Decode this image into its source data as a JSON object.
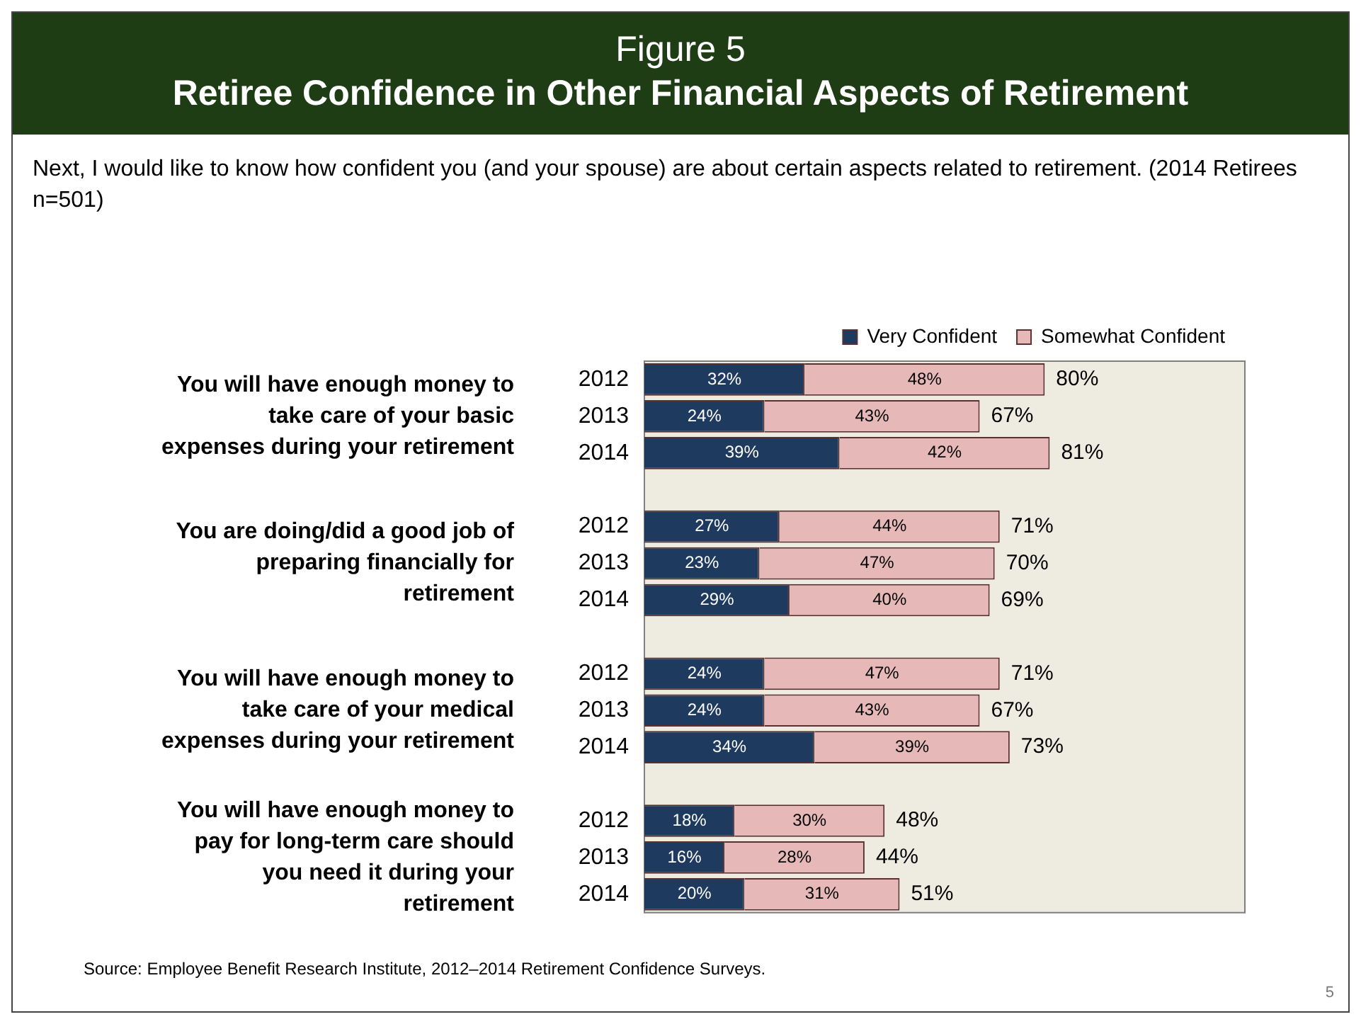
{
  "chart_data": {
    "type": "bar",
    "orientation": "horizontal",
    "stacked": true,
    "title": "Figure 5",
    "subtitle": "Retiree Confidence in Other Financial Aspects of Retirement",
    "categories": [
      "2012",
      "2013",
      "2014",
      null,
      "2012",
      "2013",
      "2014",
      null,
      "2012",
      "2013",
      "2014",
      null,
      "2012",
      "2013",
      "2014"
    ],
    "series": [
      {
        "name": "Very Confident",
        "color": "#1f3a5f",
        "values": [
          32,
          24,
          39,
          null,
          27,
          23,
          29,
          null,
          24,
          24,
          34,
          null,
          18,
          16,
          20
        ],
        "value_labels": [
          "32%",
          "24%",
          "39%",
          null,
          "27%",
          "23%",
          "29%",
          null,
          "24%",
          "24%",
          "34%",
          null,
          "18%",
          "16%",
          "20%"
        ]
      },
      {
        "name": "Somewhat Confident",
        "color": "#e6b9b8",
        "values": [
          48,
          43,
          42,
          null,
          44,
          47,
          40,
          null,
          47,
          43,
          39,
          null,
          30,
          28,
          31
        ],
        "value_labels": [
          "48%",
          "43%",
          "42%",
          null,
          "44%",
          "47%",
          "40%",
          null,
          "47%",
          "43%",
          "39%",
          null,
          "30%",
          "28%",
          "31%"
        ]
      }
    ],
    "totals": [
      "80%",
      "67%",
      "81%",
      null,
      "71%",
      "70%",
      "69%",
      null,
      "71%",
      "67%",
      "73%",
      null,
      "48%",
      "44%",
      "51%"
    ],
    "legend": "top",
    "grid": false,
    "tick_labels": "y",
    "annotations": [
      "Next, I would like to know how confident you (and your spouse) are about certain aspects related to retirement. (2014 Retirees n=501)",
      "You will have enough money to take care of your basic expenses during your retirement",
      "You are doing/did a good job of preparing financially for retirement",
      "You will have enough money to take care of your medical expenses during your retirement",
      "You will have enough money to pay for long-term care should you need it during your retirement",
      "Source:  Employee Benefit Research Institute, 2012–2014 Retirement Confidence Surveys.",
      "5"
    ]
  }
}
